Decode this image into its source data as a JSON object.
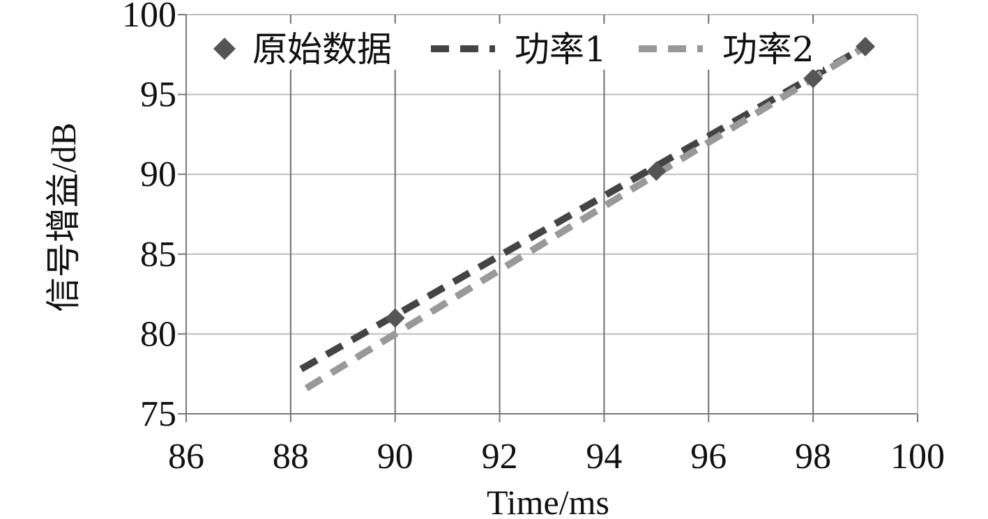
{
  "chart_data": {
    "type": "line",
    "title": "",
    "xlabel": "Time/ms",
    "ylabel": "信号增益/dB",
    "xlim": [
      86,
      100
    ],
    "ylim": [
      75,
      100
    ],
    "xticks": [
      86,
      88,
      90,
      92,
      94,
      96,
      98,
      100
    ],
    "yticks": [
      75,
      80,
      85,
      90,
      95,
      100
    ],
    "x_tick_labels": [
      "86",
      "88",
      "90",
      "92",
      "94",
      "96",
      "98",
      "100"
    ],
    "y_tick_labels": [
      "75",
      "80",
      "85",
      "90",
      "95",
      "100"
    ],
    "grid": {
      "horizontal": true,
      "vertical": true
    },
    "legend_position": "top",
    "series": [
      {
        "name": "原始数据",
        "kind": "markers",
        "marker": "diamond",
        "color": "#555555",
        "x": [
          90,
          95,
          98,
          99
        ],
        "y": [
          81,
          90.2,
          96,
          98
        ]
      },
      {
        "name": "功率1",
        "kind": "dashed-line",
        "color": "#444444",
        "x": [
          88.2,
          99
        ],
        "y": [
          77.8,
          98
        ]
      },
      {
        "name": "功率2",
        "kind": "dashed-line",
        "color": "#999999",
        "x": [
          88.3,
          99
        ],
        "y": [
          76.6,
          98
        ]
      }
    ]
  }
}
